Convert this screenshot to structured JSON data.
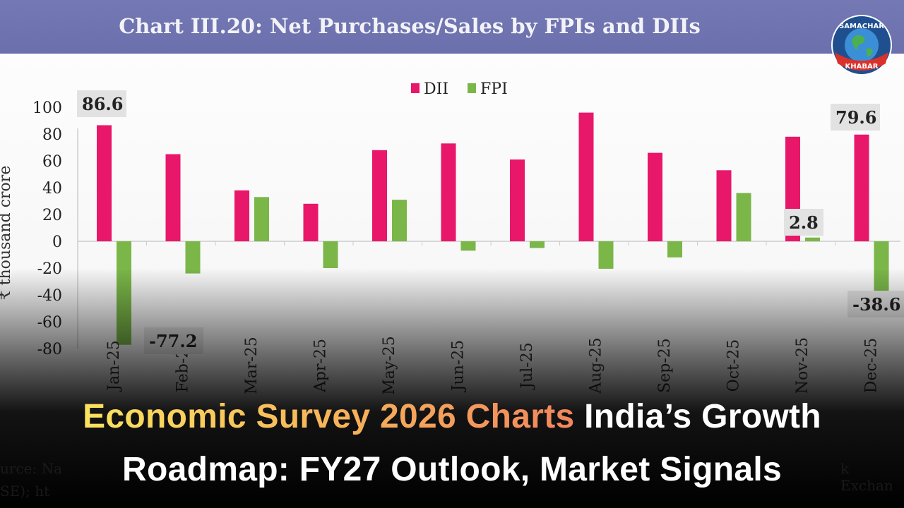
{
  "banner": {
    "title": "Chart III.20: Net Purchases/Sales by FPIs and DIIs"
  },
  "logo": {
    "text_top": "SAMACHAR",
    "text_bottom": "KHABAR"
  },
  "headline": {
    "highlight": "Economic Survey 2026 Charts",
    "rest_line1": "India’s Growth",
    "line2": "Roadmap: FY27 Outlook, Market Signals"
  },
  "source_fragments": [
    "urce: Na",
    "k Exchan",
    "SE); ht"
  ],
  "colors": {
    "dii": "#e8176a",
    "fpi": "#7ab648",
    "banner": "#7075b1"
  },
  "chart_data": {
    "type": "bar",
    "title": "Chart III.20: Net Purchases/Sales by FPIs and DIIs",
    "ylabel": "₹ thousand crore",
    "xlabel": "",
    "ylim": [
      -80,
      100
    ],
    "yticks": [
      100,
      80,
      60,
      40,
      20,
      0,
      -20,
      -40,
      -60,
      -80
    ],
    "legend": "top-center",
    "grid": false,
    "categories": [
      "Jan-25",
      "Feb-25",
      "Mar-25",
      "Apr-25",
      "May-25",
      "Jun-25",
      "Jul-25",
      "Aug-25",
      "Sep-25",
      "Oct-25",
      "Nov-25",
      "Dec-25"
    ],
    "series": [
      {
        "name": "DII",
        "values": [
          86.6,
          65,
          38,
          28,
          68,
          73,
          61,
          96,
          66,
          53,
          78,
          79.6
        ]
      },
      {
        "name": "FPI",
        "values": [
          -77.2,
          -24,
          33,
          -20,
          31,
          -7,
          -5,
          -20.5,
          -12,
          36,
          2.8,
          -38.6
        ]
      }
    ],
    "data_labels": [
      {
        "series": "DII",
        "category": "Jan-25",
        "text": "86.6"
      },
      {
        "series": "FPI",
        "category": "Jan-25",
        "text": "-77.2"
      },
      {
        "series": "FPI",
        "category": "Nov-25",
        "text": "2.8"
      },
      {
        "series": "DII",
        "category": "Dec-25",
        "text": "79.6"
      },
      {
        "series": "FPI",
        "category": "Dec-25",
        "text": "-38.6"
      }
    ]
  }
}
